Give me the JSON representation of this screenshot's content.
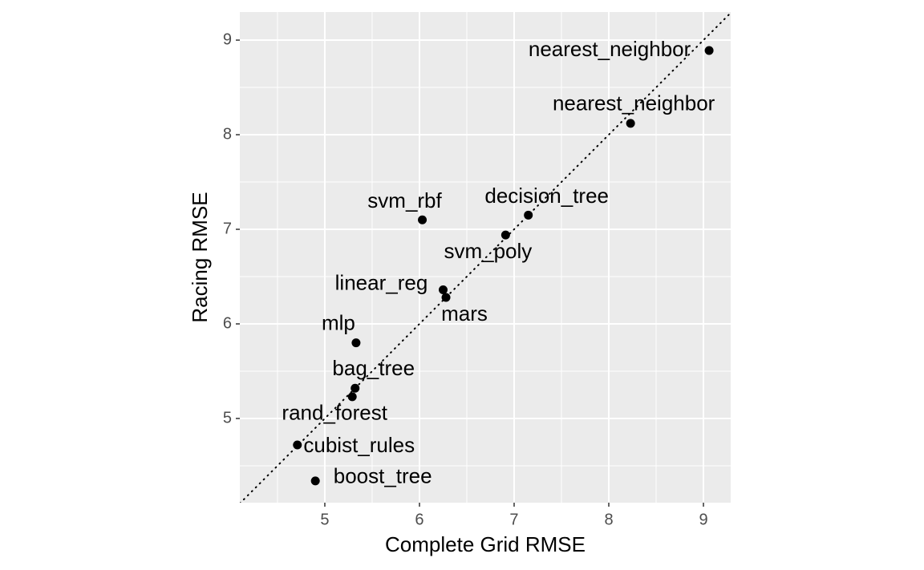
{
  "chart_data": {
    "type": "scatter",
    "x_label": "Complete Grid RMSE",
    "y_label": "Racing RMSE",
    "labels": [
      "nearest_neighbor",
      "nearest_neighbor",
      "decision_tree",
      "svm_poly",
      "svm_rbf",
      "linear_reg",
      "mars",
      "mlp",
      "bag_tree",
      "rand_forest",
      "cubist_rules",
      "boost_tree"
    ],
    "x": [
      9.06,
      8.23,
      7.15,
      6.91,
      6.03,
      6.25,
      6.28,
      5.33,
      5.32,
      5.29,
      4.71,
      4.9
    ],
    "values": [
      8.89,
      8.12,
      7.15,
      6.94,
      7.1,
      6.36,
      6.28,
      5.8,
      5.32,
      5.23,
      4.72,
      4.34
    ],
    "color": "#000000",
    "xlim": [
      4.102,
      9.288
    ],
    "ylim": [
      4.11,
      9.297
    ],
    "xticks": [
      5,
      6,
      7,
      8,
      9
    ],
    "yticks": [
      5,
      6,
      7,
      8,
      9
    ],
    "x_minor_ticks": [
      4.5,
      5.5,
      6.5,
      7.5,
      8.5
    ],
    "y_minor_ticks": [
      4.5,
      5.5,
      6.5,
      7.5,
      8.5
    ],
    "grid": true,
    "panel_color": "#ebebeb",
    "reference_line": {
      "intercept": 0,
      "slope": 1,
      "linetype": "dotted"
    }
  }
}
